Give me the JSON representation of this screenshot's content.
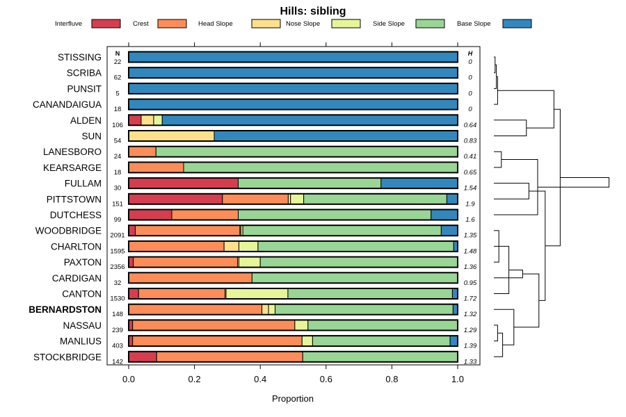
{
  "chart_data": {
    "type": "bar",
    "orientation": "horizontal",
    "stacked": true,
    "title": "Hills: sibling",
    "xlabel": "Proportion",
    "xlim": [
      0,
      1
    ],
    "xticks": [
      "0.0",
      "0.2",
      "0.4",
      "0.6",
      "0.8",
      "1.0"
    ],
    "n_header": "N",
    "h_header": "H",
    "highlighted": "BERNARDSTON",
    "series": [
      {
        "name": "Interfluve",
        "color": "#D53E4F"
      },
      {
        "name": "Crest",
        "color": "#FC8D59"
      },
      {
        "name": "Head Slope",
        "color": "#FEE08B"
      },
      {
        "name": "Nose Slope",
        "color": "#E6F598"
      },
      {
        "name": "Side Slope",
        "color": "#99D594"
      },
      {
        "name": "Base Slope",
        "color": "#3288BD"
      }
    ],
    "rows": [
      {
        "label": "STISSING",
        "n": "22",
        "h": "0",
        "values": [
          0,
          0,
          0,
          0,
          0,
          1
        ]
      },
      {
        "label": "SCRIBA",
        "n": "62",
        "h": "0",
        "values": [
          0,
          0,
          0,
          0,
          0,
          1
        ]
      },
      {
        "label": "PUNSIT",
        "n": "5",
        "h": "0",
        "values": [
          0,
          0,
          0,
          0,
          0,
          1
        ]
      },
      {
        "label": "CANANDAIGUA",
        "n": "18",
        "h": "0",
        "values": [
          0,
          0,
          0,
          0,
          0,
          1
        ]
      },
      {
        "label": "ALDEN",
        "n": "106",
        "h": "0.64",
        "values": [
          0.038,
          0,
          0.038,
          0.026,
          0,
          0.898
        ]
      },
      {
        "label": "SUN",
        "n": "54",
        "h": "0.83",
        "values": [
          0,
          0,
          0.26,
          0,
          0,
          0.74
        ]
      },
      {
        "label": "LANESBORO",
        "n": "24",
        "h": "0.41",
        "values": [
          0,
          0.083,
          0,
          0,
          0.917,
          0
        ]
      },
      {
        "label": "KEARSARGE",
        "n": "18",
        "h": "0.65",
        "values": [
          0,
          0.167,
          0,
          0,
          0.833,
          0
        ]
      },
      {
        "label": "FULLAM",
        "n": "30",
        "h": "1.54",
        "values": [
          0.333,
          0,
          0,
          0,
          0.434,
          0.233
        ]
      },
      {
        "label": "PITTSTOWN",
        "n": "151",
        "h": "1.9",
        "values": [
          0.285,
          0.2,
          0.007,
          0.04,
          0.435,
          0.033
        ]
      },
      {
        "label": "DUTCHESS",
        "n": "99",
        "h": "1.6",
        "values": [
          0.131,
          0.202,
          0,
          0,
          0.586,
          0.081
        ]
      },
      {
        "label": "WOODBRIDGE",
        "n": "2091",
        "h": "1.35",
        "values": [
          0.02,
          0.318,
          0.003,
          0.006,
          0.603,
          0.05
        ]
      },
      {
        "label": "CHARLTON",
        "n": "1595",
        "h": "1.48",
        "values": [
          0,
          0.29,
          0.045,
          0.058,
          0.595,
          0.012
        ]
      },
      {
        "label": "PAXTON",
        "n": "2356",
        "h": "1.36",
        "values": [
          0.014,
          0.317,
          0.004,
          0.065,
          0.6,
          0
        ]
      },
      {
        "label": "CARDIGAN",
        "n": "32",
        "h": "0.95",
        "values": [
          0,
          0.375,
          0,
          0,
          0.625,
          0
        ]
      },
      {
        "label": "CANTON",
        "n": "1530",
        "h": "1.72",
        "values": [
          0.03,
          0.263,
          0.003,
          0.188,
          0.5,
          0.016
        ]
      },
      {
        "label": "BERNARDSTON",
        "n": "148",
        "h": "1.32",
        "values": [
          0,
          0.405,
          0.02,
          0.02,
          0.541,
          0.014
        ]
      },
      {
        "label": "NASSAU",
        "n": "239",
        "h": "1.29",
        "values": [
          0.012,
          0.493,
          0,
          0.04,
          0.455,
          0
        ]
      },
      {
        "label": "MANLIUS",
        "n": "403",
        "h": "1.39",
        "values": [
          0.012,
          0.515,
          0,
          0.032,
          0.418,
          0.023
        ]
      },
      {
        "label": "STOCKBRIDGE",
        "n": "142",
        "h": "1.33",
        "values": [
          0.085,
          0.444,
          0,
          0,
          0.471,
          0
        ]
      }
    ],
    "dendrogram": {
      "leaf_order": [
        "STISSING",
        "SCRIBA",
        "PUNSIT",
        "CANANDAIGUA",
        "ALDEN",
        "SUN",
        "LANESBORO",
        "KEARSARGE",
        "FULLAM",
        "PITTSTOWN",
        "DUTCHESS",
        "WOODBRIDGE",
        "CHARLTON",
        "PAXTON",
        "CARDIGAN",
        "CANTON",
        "BERNARDSTON",
        "NASSAU",
        "MANLIUS",
        "STOCKBRIDGE"
      ],
      "merges": [
        [
          0,
          1,
          0.01
        ],
        [
          20,
          2,
          0.02
        ],
        [
          21,
          3,
          0.03
        ],
        [
          4,
          5,
          0.26
        ],
        [
          22,
          23,
          0.48
        ],
        [
          6,
          7,
          0.06
        ],
        [
          8,
          9,
          0.28
        ],
        [
          25,
          10,
          0.35
        ],
        [
          11,
          13,
          0.04
        ],
        [
          28,
          12,
          0.07
        ],
        [
          29,
          15,
          0.12
        ],
        [
          30,
          14,
          0.23
        ],
        [
          17,
          18,
          0.03
        ],
        [
          32,
          19,
          0.07
        ],
        [
          33,
          16,
          0.16
        ],
        [
          31,
          34,
          0.36
        ],
        [
          26,
          35,
          0.41
        ],
        [
          24,
          36,
          0.53
        ],
        [
          27,
          37,
          0.92
        ]
      ],
      "max_height": 1.0
    }
  }
}
